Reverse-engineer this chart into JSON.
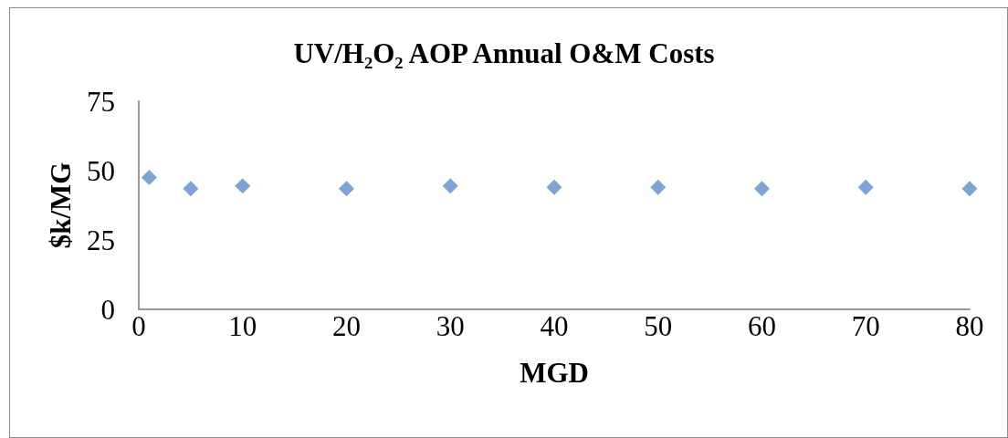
{
  "chart_data": {
    "type": "scatter",
    "title": "UV/H₂O₂ AOP Annual O&M Costs",
    "xlabel": "MGD",
    "ylabel": "$k/MG",
    "x": [
      1,
      5,
      10,
      20,
      30,
      40,
      50,
      60,
      70,
      80
    ],
    "values": [
      47.5,
      43.5,
      44.5,
      43.5,
      44.5,
      44,
      44,
      43.5,
      44,
      43.5
    ],
    "color": "#5b8fc6",
    "xlim": [
      0,
      80
    ],
    "xticks": [
      0,
      10,
      20,
      30,
      40,
      50,
      60,
      70,
      80
    ],
    "ylim": [
      0,
      75
    ],
    "yticks": [
      0,
      25,
      50,
      75
    ],
    "grid": false,
    "marker": "diamond"
  }
}
